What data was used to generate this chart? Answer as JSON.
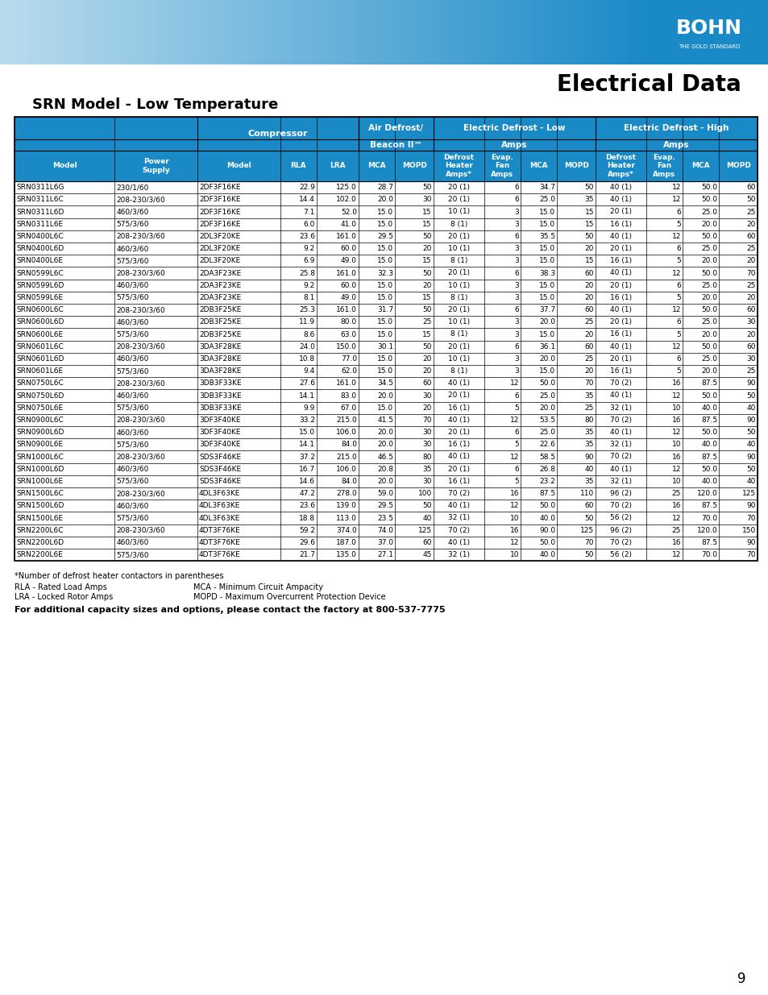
{
  "title": "Electrical Data",
  "subtitle": "SRN Model - Low Temperature",
  "header_bg": "#1a8ac7",
  "header_text_color": "#ffffff",
  "row_bg_even": "#ffffff",
  "row_bg_odd": "#ffffff",
  "border_color": "#000000",
  "top_banner_colors": [
    "#d6eaf8",
    "#1a8ac7"
  ],
  "columns": [
    "Model",
    "Power\nSupply",
    "Model",
    "RLA",
    "LRA",
    "MCA",
    "MOPD",
    "Defrost\nHeater\nAmps*",
    "Evap.\nFan\nAmps",
    "MCA",
    "MOPD",
    "Defrost\nHeater\nAmps*",
    "Evap.\nFan\nAmps",
    "MCA",
    "MOPD"
  ],
  "col_groups": [
    {
      "label": "",
      "span": 2
    },
    {
      "label": "Compressor",
      "span": 2
    },
    {
      "label": "Air Defrost/\nBeacon II™",
      "span": 2
    },
    {
      "label": "Electric Defrost - Low\nAmps",
      "span": 4
    },
    {
      "label": "Electric Defrost - High\nAmps",
      "span": 4
    }
  ],
  "rows": [
    [
      "SRN0311L6G",
      "230/1/60",
      "2DF3F16KE",
      "22.9",
      "125.0",
      "28.7",
      "50",
      "20 (1)",
      "6",
      "34.7",
      "50",
      "40 (1)",
      "12",
      "50.0",
      "60"
    ],
    [
      "SRN0311L6C",
      "208-230/3/60",
      "2DF3F16KE",
      "14.4",
      "102.0",
      "20.0",
      "30",
      "20 (1)",
      "6",
      "25.0",
      "35",
      "40 (1)",
      "12",
      "50.0",
      "50"
    ],
    [
      "SRN0311L6D",
      "460/3/60",
      "2DF3F16KE",
      "7.1",
      "52.0",
      "15.0",
      "15",
      "10 (1)",
      "3",
      "15.0",
      "15",
      "20 (1)",
      "6",
      "25.0",
      "25"
    ],
    [
      "SRN0311L6E",
      "575/3/60",
      "2DF3F16KE",
      "6.0",
      "41.0",
      "15.0",
      "15",
      "8 (1)",
      "3",
      "15.0",
      "15",
      "16 (1)",
      "5",
      "20.0",
      "20"
    ],
    [
      "SRN0400L6C",
      "208-230/3/60",
      "2DL3F20KE",
      "23.6",
      "161.0",
      "29.5",
      "50",
      "20 (1)",
      "6",
      "35.5",
      "50",
      "40 (1)",
      "12",
      "50.0",
      "60"
    ],
    [
      "SRN0400L6D",
      "460/3/60",
      "2DL3F20KE",
      "9.2",
      "60.0",
      "15.0",
      "20",
      "10 (1)",
      "3",
      "15.0",
      "20",
      "20 (1)",
      "6",
      "25.0",
      "25"
    ],
    [
      "SRN0400L6E",
      "575/3/60",
      "2DL3F20KE",
      "6.9",
      "49.0",
      "15.0",
      "15",
      "8 (1)",
      "3",
      "15.0",
      "15",
      "16 (1)",
      "5",
      "20.0",
      "20"
    ],
    [
      "SRN0599L6C",
      "208-230/3/60",
      "2DA3F23KE",
      "25.8",
      "161.0",
      "32.3",
      "50",
      "20 (1)",
      "6",
      "38.3",
      "60",
      "40 (1)",
      "12",
      "50.0",
      "70"
    ],
    [
      "SRN0599L6D",
      "460/3/60",
      "2DA3F23KE",
      "9.2",
      "60.0",
      "15.0",
      "20",
      "10 (1)",
      "3",
      "15.0",
      "20",
      "20 (1)",
      "6",
      "25.0",
      "25"
    ],
    [
      "SRN0599L6E",
      "575/3/60",
      "2DA3F23KE",
      "8.1",
      "49.0",
      "15.0",
      "15",
      "8 (1)",
      "3",
      "15.0",
      "20",
      "16 (1)",
      "5",
      "20.0",
      "20"
    ],
    [
      "SRN0600L6C",
      "208-230/3/60",
      "2DB3F25KE",
      "25.3",
      "161.0",
      "31.7",
      "50",
      "20 (1)",
      "6",
      "37.7",
      "60",
      "40 (1)",
      "12",
      "50.0",
      "60"
    ],
    [
      "SRN0600L6D",
      "460/3/60",
      "2DB3F25KE",
      "11.9",
      "80.0",
      "15.0",
      "25",
      "10 (1)",
      "3",
      "20.0",
      "25",
      "20 (1)",
      "6",
      "25.0",
      "30"
    ],
    [
      "SRN0600L6E",
      "575/3/60",
      "2DB3F25KE",
      "8.6",
      "63.0",
      "15.0",
      "15",
      "8 (1)",
      "3",
      "15.0",
      "20",
      "16 (1)",
      "5",
      "20.0",
      "20"
    ],
    [
      "SRN0601L6C",
      "208-230/3/60",
      "3DA3F28KE",
      "24.0",
      "150.0",
      "30.1",
      "50",
      "20 (1)",
      "6",
      "36.1",
      "60",
      "40 (1)",
      "12",
      "50.0",
      "60"
    ],
    [
      "SRN0601L6D",
      "460/3/60",
      "3DA3F28KE",
      "10.8",
      "77.0",
      "15.0",
      "20",
      "10 (1)",
      "3",
      "20.0",
      "25",
      "20 (1)",
      "6",
      "25.0",
      "30"
    ],
    [
      "SRN0601L6E",
      "575/3/60",
      "3DA3F28KE",
      "9.4",
      "62.0",
      "15.0",
      "20",
      "8 (1)",
      "3",
      "15.0",
      "20",
      "16 (1)",
      "5",
      "20.0",
      "25"
    ],
    [
      "SRN0750L6C",
      "208-230/3/60",
      "3DB3F33KE",
      "27.6",
      "161.0",
      "34.5",
      "60",
      "40 (1)",
      "12",
      "50.0",
      "70",
      "70 (2)",
      "16",
      "87.5",
      "90"
    ],
    [
      "SRN0750L6D",
      "460/3/60",
      "3DB3F33KE",
      "14.1",
      "83.0",
      "20.0",
      "30",
      "20 (1)",
      "6",
      "25.0",
      "35",
      "40 (1)",
      "12",
      "50.0",
      "50"
    ],
    [
      "SRN0750L6E",
      "575/3/60",
      "3DB3F33KE",
      "9.9",
      "67.0",
      "15.0",
      "20",
      "16 (1)",
      "5",
      "20.0",
      "25",
      "32 (1)",
      "10",
      "40.0",
      "40"
    ],
    [
      "SRN0900L6C",
      "208-230/3/60",
      "3DF3F40KE",
      "33.2",
      "215.0",
      "41.5",
      "70",
      "40 (1)",
      "12",
      "53.5",
      "80",
      "70 (2)",
      "16",
      "87.5",
      "90"
    ],
    [
      "SRN0900L6D",
      "460/3/60",
      "3DF3F40KE",
      "15.0",
      "106.0",
      "20.0",
      "30",
      "20 (1)",
      "6",
      "25.0",
      "35",
      "40 (1)",
      "12",
      "50.0",
      "50"
    ],
    [
      "SRN0900L6E",
      "575/3/60",
      "3DF3F40KE",
      "14.1",
      "84.0",
      "20.0",
      "30",
      "16 (1)",
      "5",
      "22.6",
      "35",
      "32 (1)",
      "10",
      "40.0",
      "40"
    ],
    [
      "SRN1000L6C",
      "208-230/3/60",
      "SDS3F46KE",
      "37.2",
      "215.0",
      "46.5",
      "80",
      "40 (1)",
      "12",
      "58.5",
      "90",
      "70 (2)",
      "16",
      "87.5",
      "90"
    ],
    [
      "SRN1000L6D",
      "460/3/60",
      "SDS3F46KE",
      "16.7",
      "106.0",
      "20.8",
      "35",
      "20 (1)",
      "6",
      "26.8",
      "40",
      "40 (1)",
      "12",
      "50.0",
      "50"
    ],
    [
      "SRN1000L6E",
      "575/3/60",
      "SDS3F46KE",
      "14.6",
      "84.0",
      "20.0",
      "30",
      "16 (1)",
      "5",
      "23.2",
      "35",
      "32 (1)",
      "10",
      "40.0",
      "40"
    ],
    [
      "SRN1500L6C",
      "208-230/3/60",
      "4DL3F63KE",
      "47.2",
      "278.0",
      "59.0",
      "100",
      "70 (2)",
      "16",
      "87.5",
      "110",
      "96 (2)",
      "25",
      "120.0",
      "125"
    ],
    [
      "SRN1500L6D",
      "460/3/60",
      "4DL3F63KE",
      "23.6",
      "139.0",
      "29.5",
      "50",
      "40 (1)",
      "12",
      "50.0",
      "60",
      "70 (2)",
      "16",
      "87.5",
      "90"
    ],
    [
      "SRN1500L6E",
      "575/3/60",
      "4DL3F63KE",
      "18.8",
      "113.0",
      "23.5",
      "40",
      "32 (1)",
      "10",
      "40.0",
      "50",
      "56 (2)",
      "12",
      "70.0",
      "70"
    ],
    [
      "SRN2200L6C",
      "208-230/3/60",
      "4DT3F76KE",
      "59.2",
      "374.0",
      "74.0",
      "125",
      "70 (2)",
      "16",
      "90.0",
      "125",
      "96 (2)",
      "25",
      "120.0",
      "150"
    ],
    [
      "SRN2200L6D",
      "460/3/60",
      "4DT3F76KE",
      "29.6",
      "187.0",
      "37.0",
      "60",
      "40 (1)",
      "12",
      "50.0",
      "70",
      "70 (2)",
      "16",
      "87.5",
      "90"
    ],
    [
      "SRN2200L6E",
      "575/3/60",
      "4DT3F76KE",
      "21.7",
      "135.0",
      "27.1",
      "45",
      "32 (1)",
      "10",
      "40.0",
      "50",
      "56 (2)",
      "12",
      "70.0",
      "70"
    ]
  ],
  "footnotes": [
    "*Number of defrost heater contactors in parentheses",
    "RLA - Rated Load Amps                    MCA - Minimum Circuit Ampacity",
    "LRA - Locked Rotor Amps               MOPD - Maximum Overcurrent Protection Device"
  ],
  "footer_bold": "For additional capacity sizes and options, please contact the factory at 800-537-7775",
  "page_number": "9"
}
